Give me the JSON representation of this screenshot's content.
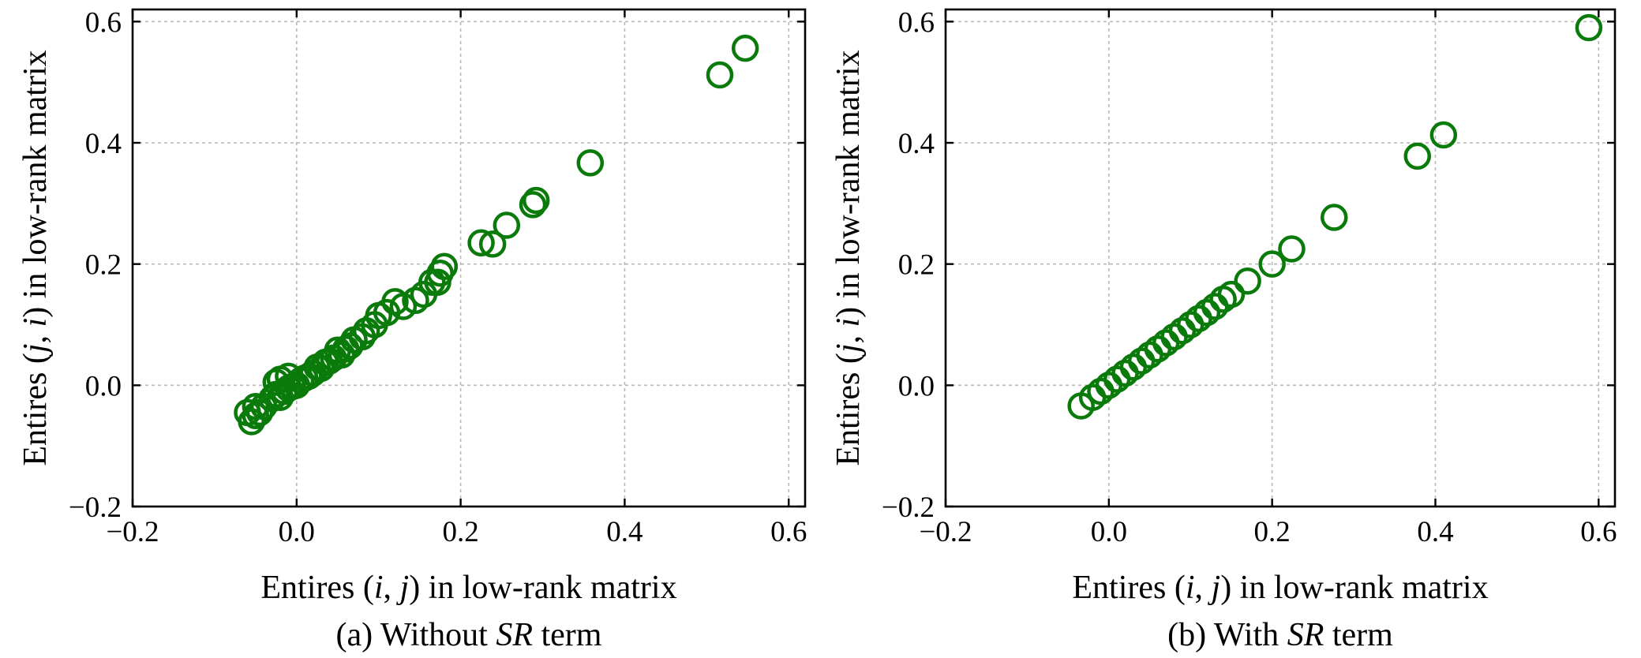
{
  "chart_data": [
    {
      "type": "scatter",
      "caption_prefix": "(a) Without ",
      "caption_italic": "SR",
      "caption_suffix": " term",
      "xlabel_parts": [
        "Entires (",
        "i",
        ", ",
        "j",
        ") in low-rank matrix"
      ],
      "ylabel_parts": [
        "Entires (",
        "j",
        ", ",
        "i",
        ") in low-rank matrix"
      ],
      "xlim": [
        -0.2,
        0.62
      ],
      "ylim": [
        -0.2,
        0.62
      ],
      "xticks": [
        -0.2,
        0.0,
        0.2,
        0.4,
        0.6
      ],
      "yticks": [
        -0.2,
        0.0,
        0.2,
        0.4,
        0.6
      ],
      "xtick_labels": [
        "−0.2",
        "0.0",
        "0.2",
        "0.4",
        "0.6"
      ],
      "ytick_labels": [
        "−0.2",
        "0.0",
        "0.2",
        "0.4",
        "0.6"
      ],
      "grid": true,
      "marker_color": "#0a7a0a",
      "marker": "open-circle",
      "points": [
        [
          0.547,
          0.556
        ],
        [
          0.516,
          0.512
        ],
        [
          0.358,
          0.367
        ],
        [
          0.292,
          0.305
        ],
        [
          0.288,
          0.298
        ],
        [
          0.256,
          0.264
        ],
        [
          0.239,
          0.233
        ],
        [
          0.225,
          0.235
        ],
        [
          0.18,
          0.196
        ],
        [
          0.175,
          0.185
        ],
        [
          0.172,
          0.17
        ],
        [
          0.165,
          0.17
        ],
        [
          0.155,
          0.15
        ],
        [
          0.145,
          0.14
        ],
        [
          0.13,
          0.13
        ],
        [
          0.12,
          0.138
        ],
        [
          0.11,
          0.12
        ],
        [
          0.1,
          0.115
        ],
        [
          0.095,
          0.1
        ],
        [
          0.085,
          0.09
        ],
        [
          0.08,
          0.08
        ],
        [
          0.07,
          0.075
        ],
        [
          0.065,
          0.065
        ],
        [
          0.06,
          0.06
        ],
        [
          0.055,
          0.05
        ],
        [
          0.05,
          0.058
        ],
        [
          0.045,
          0.045
        ],
        [
          0.04,
          0.04
        ],
        [
          0.035,
          0.038
        ],
        [
          0.03,
          0.028
        ],
        [
          0.025,
          0.03
        ],
        [
          0.02,
          0.02
        ],
        [
          0.015,
          0.015
        ],
        [
          0.01,
          0.012
        ],
        [
          0.005,
          0.008
        ],
        [
          0.0,
          0.0
        ],
        [
          -0.005,
          -0.002
        ],
        [
          -0.01,
          -0.005
        ],
        [
          -0.015,
          -0.01
        ],
        [
          -0.02,
          -0.02
        ],
        [
          -0.025,
          -0.015
        ],
        [
          -0.03,
          -0.022
        ],
        [
          -0.02,
          0.01
        ],
        [
          -0.025,
          0.005
        ],
        [
          -0.01,
          0.015
        ],
        [
          -0.04,
          -0.035
        ],
        [
          -0.045,
          -0.045
        ],
        [
          -0.05,
          -0.05
        ],
        [
          -0.055,
          -0.06
        ],
        [
          -0.06,
          -0.045
        ],
        [
          -0.05,
          -0.035
        ]
      ]
    },
    {
      "type": "scatter",
      "caption_prefix": "(b) With ",
      "caption_italic": "SR",
      "caption_suffix": " term",
      "xlabel_parts": [
        "Entires (",
        "i",
        ", ",
        "j",
        ") in low-rank matrix"
      ],
      "ylabel_parts": [
        "Entires (",
        "j",
        ", ",
        "i",
        ") in low-rank matrix"
      ],
      "xlim": [
        -0.2,
        0.62
      ],
      "ylim": [
        -0.2,
        0.62
      ],
      "xticks": [
        -0.2,
        0.0,
        0.2,
        0.4,
        0.6
      ],
      "yticks": [
        -0.2,
        0.0,
        0.2,
        0.4,
        0.6
      ],
      "xtick_labels": [
        "−0.2",
        "0.0",
        "0.2",
        "0.4",
        "0.6"
      ],
      "ytick_labels": [
        "−0.2",
        "0.0",
        "0.2",
        "0.4",
        "0.6"
      ],
      "grid": true,
      "marker_color": "#0a7a0a",
      "marker": "open-circle",
      "points": [
        [
          0.588,
          0.59
        ],
        [
          0.41,
          0.413
        ],
        [
          0.378,
          0.378
        ],
        [
          0.276,
          0.277
        ],
        [
          0.224,
          0.225
        ],
        [
          0.2,
          0.2
        ],
        [
          0.17,
          0.172
        ],
        [
          0.15,
          0.15
        ],
        [
          0.14,
          0.142
        ],
        [
          0.13,
          0.13
        ],
        [
          0.12,
          0.12
        ],
        [
          0.11,
          0.11
        ],
        [
          0.1,
          0.1
        ],
        [
          0.09,
          0.09
        ],
        [
          0.08,
          0.08
        ],
        [
          0.07,
          0.07
        ],
        [
          0.06,
          0.06
        ],
        [
          0.05,
          0.05
        ],
        [
          0.04,
          0.04
        ],
        [
          0.03,
          0.03
        ],
        [
          0.02,
          0.02
        ],
        [
          0.01,
          0.01
        ],
        [
          0.0,
          0.0
        ],
        [
          -0.01,
          -0.01
        ],
        [
          -0.02,
          -0.02
        ],
        [
          -0.034,
          -0.034
        ]
      ]
    }
  ]
}
